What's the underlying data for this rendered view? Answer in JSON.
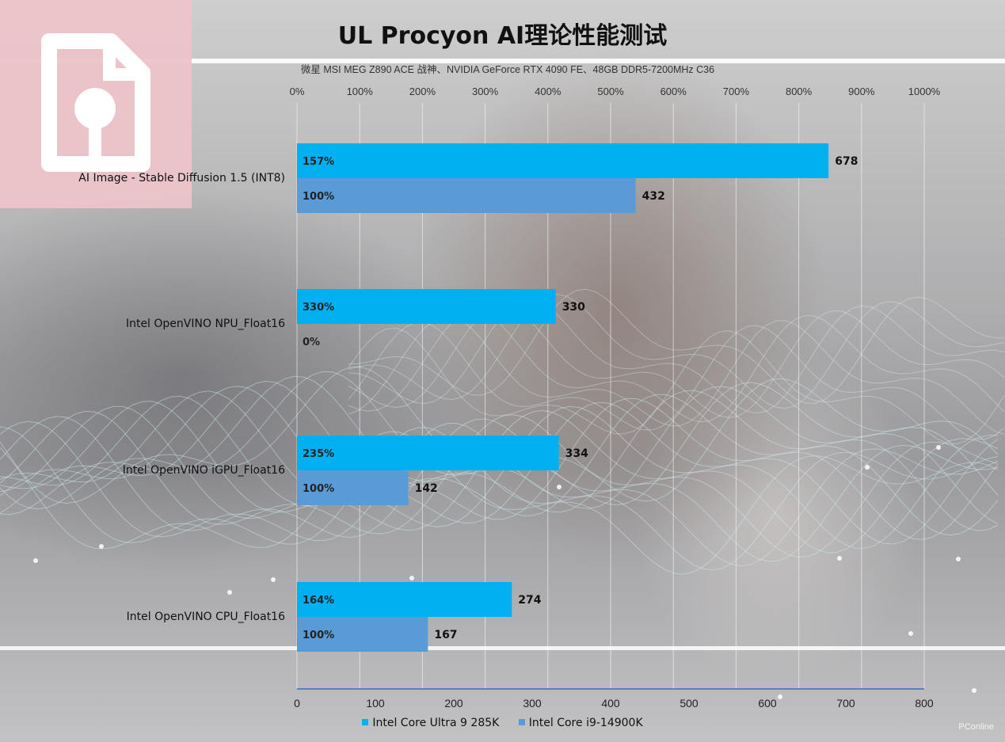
{
  "header": {
    "title": "UL Procyon AI理论性能测试",
    "subtitle": "微星 MSI MEG Z890 ACE 战神、NVIDIA GeForce RTX 4090 FE、48GB DDR5-7200MHz C36"
  },
  "colors": {
    "series1": "#00b0f0",
    "series2": "#5b9bd5",
    "logo_bg": "#ecc4c9"
  },
  "chart_data": {
    "type": "bar",
    "orientation": "horizontal",
    "categories": [
      "AI Image - Stable Diffusion 1.5 (INT8)",
      "Intel OpenVINO NPU_Float16",
      "Intel OpenVINO iGPU_Float16",
      "Intel OpenVINO CPU_Float16"
    ],
    "series": [
      {
        "name": "Intel Core Ultra 9 285K",
        "values": [
          678,
          330,
          334,
          274
        ],
        "percent_labels": [
          "157%",
          "330%",
          "235%",
          "164%"
        ]
      },
      {
        "name": "Intel Core i9-14900K",
        "values": [
          432,
          0,
          142,
          167
        ],
        "percent_labels": [
          "100%",
          "0%",
          "100%",
          "100%"
        ],
        "value_labels": [
          "432",
          "",
          "142",
          "167"
        ]
      }
    ],
    "x_axis": {
      "range": [
        0,
        800
      ],
      "ticks": [
        "0",
        "100",
        "200",
        "300",
        "400",
        "500",
        "600",
        "700",
        "800"
      ]
    },
    "secondary_axis": {
      "range": [
        0,
        1000
      ],
      "unit": "%",
      "ticks": [
        "0%",
        "100%",
        "200%",
        "300%",
        "400%",
        "500%",
        "600%",
        "700%",
        "800%",
        "900%",
        "1000%"
      ]
    },
    "grid": true,
    "legend_position": "bottom"
  },
  "logo_icon": "document-keyhole-icon",
  "watermark": "PConline"
}
